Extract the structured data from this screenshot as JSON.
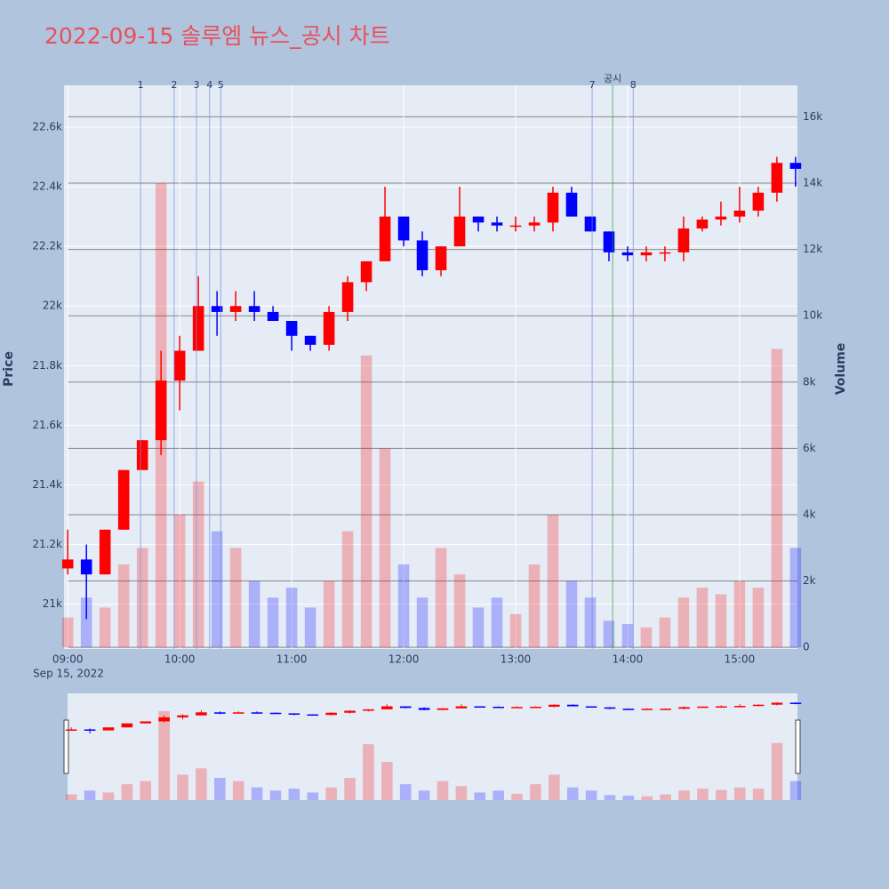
{
  "chart_data": {
    "type": "candlestick",
    "title": "2022-09-15 솔루엠 뉴스_공시 차트",
    "y_label": "Price",
    "y2_label": "Volume",
    "x_date_label": "Sep 15, 2022",
    "x": [
      "2022-09-15 09:00",
      "2022-09-15 09:10",
      "2022-09-15 09:20",
      "2022-09-15 09:30",
      "2022-09-15 09:40",
      "2022-09-15 09:50",
      "2022-09-15 10:00",
      "2022-09-15 10:10",
      "2022-09-15 10:20",
      "2022-09-15 10:30",
      "2022-09-15 10:40",
      "2022-09-15 10:50",
      "2022-09-15 11:00",
      "2022-09-15 11:10",
      "2022-09-15 11:20",
      "2022-09-15 11:30",
      "2022-09-15 11:40",
      "2022-09-15 11:50",
      "2022-09-15 12:00",
      "2022-09-15 12:10",
      "2022-09-15 12:20",
      "2022-09-15 12:30",
      "2022-09-15 12:40",
      "2022-09-15 12:50",
      "2022-09-15 13:00",
      "2022-09-15 13:10",
      "2022-09-15 13:20",
      "2022-09-15 13:30",
      "2022-09-15 13:40",
      "2022-09-15 13:50",
      "2022-09-15 14:00",
      "2022-09-15 14:10",
      "2022-09-15 14:20",
      "2022-09-15 14:30",
      "2022-09-15 14:40",
      "2022-09-15 14:50",
      "2022-09-15 15:00",
      "2022-09-15 15:10",
      "2022-09-15 15:20",
      "2022-09-15 15:30"
    ],
    "open": [
      21120,
      21150,
      21100,
      21250,
      21450,
      21550,
      21750,
      21850,
      22000,
      21980,
      22000,
      21980,
      21950,
      21900,
      21870,
      21980,
      22080,
      22150,
      22300,
      22220,
      22120,
      22200,
      22300,
      22280,
      22270,
      22270,
      22280,
      22380,
      22300,
      22250,
      22180,
      22170,
      22180,
      22180,
      22260,
      22290,
      22300,
      22320,
      22380,
      22480
    ],
    "high": [
      21250,
      21200,
      21250,
      21450,
      21550,
      21850,
      21900,
      22100,
      22050,
      22050,
      22050,
      22000,
      21950,
      21900,
      22000,
      22100,
      22150,
      22400,
      22300,
      22250,
      22200,
      22400,
      22300,
      22300,
      22300,
      22300,
      22400,
      22400,
      22300,
      22250,
      22200,
      22200,
      22200,
      22300,
      22300,
      22350,
      22400,
      22400,
      22500,
      22500
    ],
    "low": [
      21100,
      20950,
      21100,
      21250,
      21450,
      21500,
      21650,
      21850,
      21900,
      21950,
      21950,
      21950,
      21850,
      21850,
      21850,
      21950,
      22050,
      22150,
      22200,
      22100,
      22100,
      22200,
      22250,
      22250,
      22250,
      22250,
      22250,
      22300,
      22250,
      22150,
      22150,
      22150,
      22150,
      22150,
      22250,
      22270,
      22280,
      22300,
      22350,
      22400
    ],
    "close": [
      21150,
      21100,
      21250,
      21450,
      21550,
      21750,
      21850,
      22000,
      21980,
      22000,
      21980,
      21950,
      21900,
      21870,
      21980,
      22080,
      22150,
      22300,
      22220,
      22120,
      22200,
      22300,
      22280,
      22270,
      22270,
      22280,
      22380,
      22300,
      22250,
      22180,
      22170,
      22180,
      22180,
      22260,
      22290,
      22300,
      22320,
      22380,
      22480,
      22460
    ],
    "volume": [
      900,
      1500,
      1200,
      2500,
      3000,
      14000,
      4000,
      5000,
      3500,
      3000,
      2000,
      1500,
      1800,
      1200,
      2000,
      3500,
      8800,
      6000,
      2500,
      1500,
      3000,
      2200,
      1200,
      1500,
      1000,
      2500,
      4000,
      2000,
      1500,
      800,
      700,
      600,
      900,
      1500,
      1800,
      1600,
      2000,
      1800,
      9000,
      3000
    ],
    "up_color": "#ff0000",
    "down_color": "#0000ff",
    "xlim": [
      "2022-09-15 08:58",
      "2022-09-15 15:31"
    ],
    "xticks": [
      {
        "value": "2022-09-15 09:00",
        "label": "09:00"
      },
      {
        "value": "2022-09-15 10:00",
        "label": "10:00"
      },
      {
        "value": "2022-09-15 11:00",
        "label": "11:00"
      },
      {
        "value": "2022-09-15 12:00",
        "label": "12:00"
      },
      {
        "value": "2022-09-15 13:00",
        "label": "13:00"
      },
      {
        "value": "2022-09-15 14:00",
        "label": "14:00"
      },
      {
        "value": "2022-09-15 15:00",
        "label": "15:00"
      }
    ],
    "ylim": [
      20850,
      22740
    ],
    "yticks": [
      {
        "value": 21000,
        "label": "21k"
      },
      {
        "value": 21200,
        "label": "21.2k"
      },
      {
        "value": 21400,
        "label": "21.4k"
      },
      {
        "value": 21600,
        "label": "21.6k"
      },
      {
        "value": 21800,
        "label": "21.8k"
      },
      {
        "value": 22000,
        "label": "22k"
      },
      {
        "value": 22200,
        "label": "22.2k"
      },
      {
        "value": 22400,
        "label": "22.4k"
      },
      {
        "value": 22600,
        "label": "22.6k"
      }
    ],
    "y2lim": [
      -50,
      16950
    ],
    "y2ticks": [
      0,
      {
        "value": 2000,
        "label": "2k"
      },
      {
        "value": 4000,
        "label": "4k"
      },
      {
        "value": 6000,
        "label": "6k"
      },
      {
        "value": 8000,
        "label": "8k"
      },
      {
        "value": 10000,
        "label": "10k"
      },
      {
        "value": 12000,
        "label": "12k"
      },
      {
        "value": 14000,
        "label": "14k"
      },
      {
        "value": 16000,
        "label": "16k"
      }
    ],
    "annotations": [
      {
        "label": "1",
        "x": "2022-09-15 09:39",
        "color": "#6f8fe0"
      },
      {
        "label": "2",
        "x": "2022-09-15 09:57",
        "color": "#6f8fe0"
      },
      {
        "label": "3",
        "x": "2022-09-15 10:09",
        "color": "#6f8fe0"
      },
      {
        "label": "4",
        "x": "2022-09-15 10:16",
        "color": "#6f8fe0"
      },
      {
        "label": "5",
        "x": "2022-09-15 10:22",
        "color": "#6f8fe0"
      },
      {
        "label": "7",
        "x": "2022-09-15 13:41",
        "color": "#6f8fe0"
      },
      {
        "label": "공시",
        "x": "2022-09-15 13:52",
        "color": "#2ca02c"
      },
      {
        "label": "8",
        "x": "2022-09-15 14:03",
        "color": "#6f8fe0"
      }
    ]
  }
}
